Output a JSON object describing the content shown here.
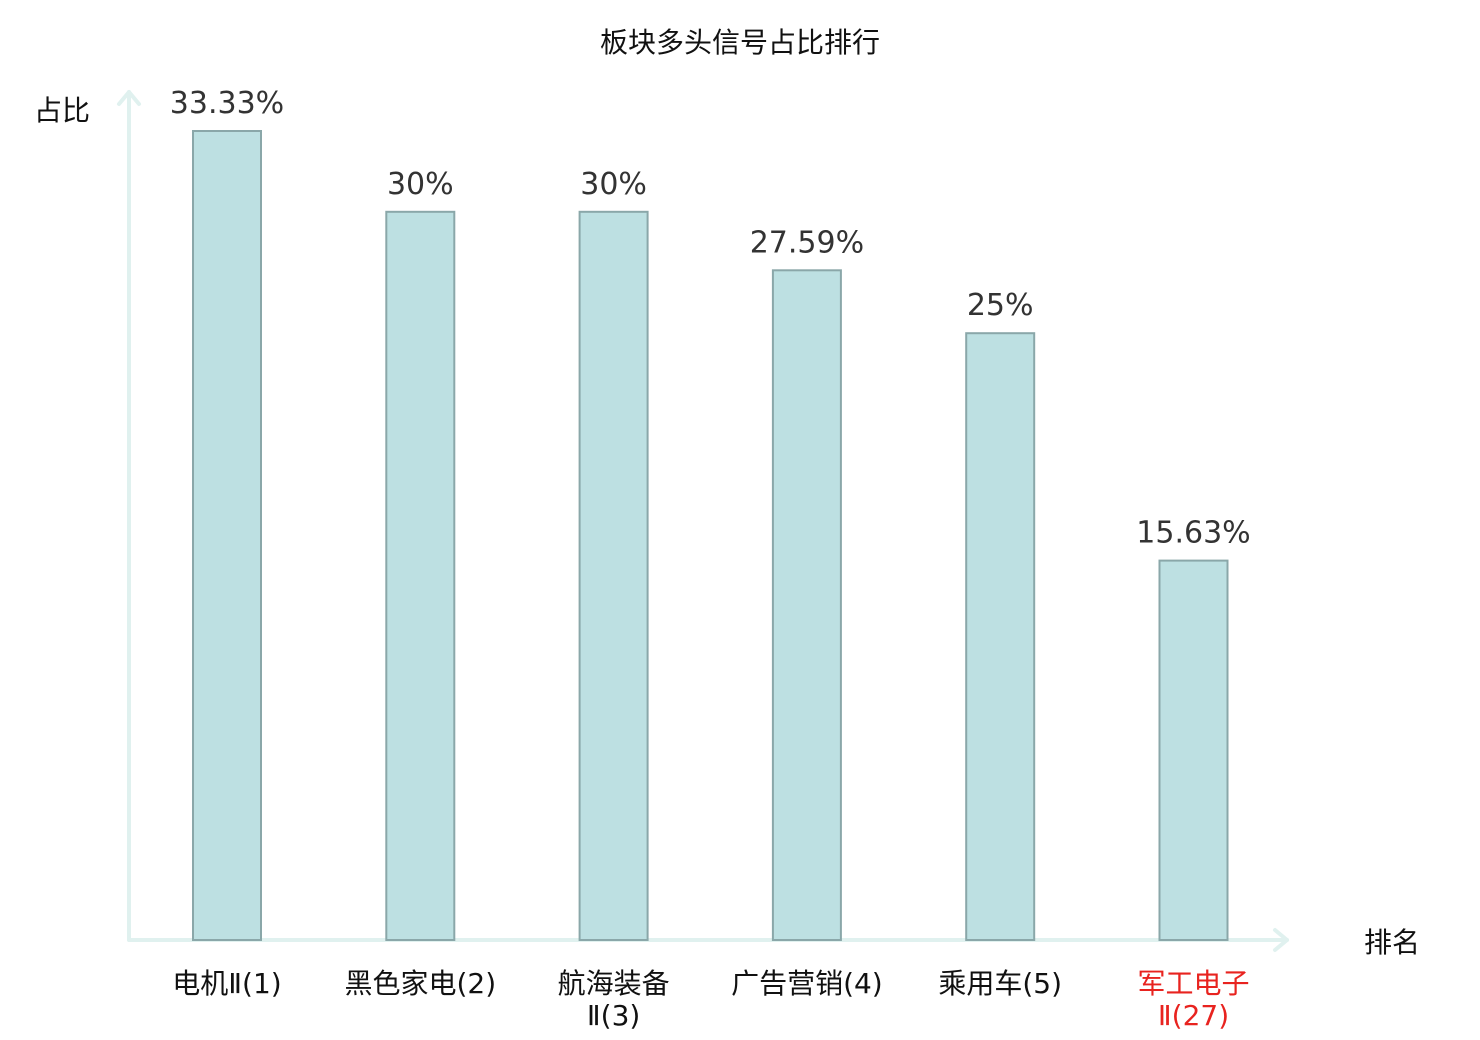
{
  "chart_data": {
    "type": "bar",
    "title": "板块多头信号占比排行",
    "ylabel": "占比",
    "xlabel": "排名",
    "ylim": [
      0,
      35
    ],
    "grid": false,
    "categories": [
      {
        "lines": [
          "电机Ⅱ(1)"
        ],
        "highlight": false
      },
      {
        "lines": [
          "黑色家电(2)"
        ],
        "highlight": false
      },
      {
        "lines": [
          "航海装备",
          "Ⅱ(3)"
        ],
        "highlight": false
      },
      {
        "lines": [
          "广告营销(4)"
        ],
        "highlight": false
      },
      {
        "lines": [
          "乘用车(5)"
        ],
        "highlight": false
      },
      {
        "lines": [
          "军工电子",
          "Ⅱ(27)"
        ],
        "highlight": true
      }
    ],
    "values": [
      33.33,
      30,
      30,
      27.59,
      25,
      15.63
    ],
    "value_labels": [
      "33.33%",
      "30%",
      "30%",
      "27.59%",
      "25%",
      "15.63%"
    ],
    "colors": {
      "bar_fill": "#bde0e2",
      "bar_stroke": "#8aa7a9",
      "axis": "#e0f1ef",
      "highlight": "#e8231f"
    }
  }
}
